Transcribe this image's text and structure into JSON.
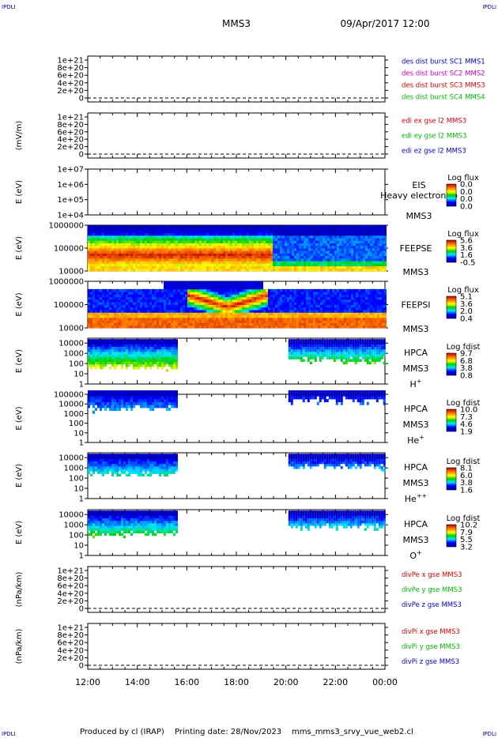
{
  "header": {
    "corner_label": "IPDLI",
    "spacecraft": "MMS3",
    "datetime": "09/Apr/2017 12:00"
  },
  "footer": {
    "produced_by": "Produced by cl (IRAP)",
    "printing_date": "Printing date: 28/Nov/2023",
    "filename": "mms_mms3_srvy_vue_web2.cl"
  },
  "chart_data": {
    "type": "multi-panel time series / spectrogram",
    "x": {
      "ticks": [
        "12:00",
        "14:00",
        "16:00",
        "18:00",
        "20:00",
        "22:00",
        "00:00"
      ],
      "range_hours": [
        12,
        24
      ]
    },
    "panels": [
      {
        "id": "dist",
        "kind": "line",
        "ylabel": "",
        "y_ticks": [
          "1e+21",
          "8e+20",
          "6e+20",
          "4e+20",
          "2e+20",
          "0"
        ],
        "ylim": [
          0,
          1e+21
        ],
        "legend": [
          {
            "text": "des dist burst SC1 MMS1",
            "color": "#0000cc"
          },
          {
            "text": "des dist burst SC2 MMS2",
            "color": "#cc00cc"
          },
          {
            "text": "des dist burst SC3 MMS3",
            "color": "#dd0000"
          },
          {
            "text": "des dist burst SC4 MMS4",
            "color": "#00bb00"
          }
        ]
      },
      {
        "id": "edi",
        "kind": "line",
        "ylabel": "(mV/m)",
        "y_ticks": [
          "1e+21",
          "8e+20",
          "6e+20",
          "4e+20",
          "2e+20",
          "0"
        ],
        "ylim": [
          0,
          1e+21
        ],
        "legend": [
          {
            "text": "edi ex gse l2 MMS3",
            "color": "#dd0000"
          },
          {
            "text": "edi ey gse l2 MMS3",
            "color": "#00bb00"
          },
          {
            "text": "edi ez gse l2 MMS3",
            "color": "#0000cc"
          }
        ]
      },
      {
        "id": "eis",
        "kind": "spectrogram",
        "ylabel": "E (eV)",
        "y_ticks": [
          "1e+07",
          "1e+06",
          "1e+05",
          "1e+04"
        ],
        "ylim": [
          10000,
          10000000
        ],
        "yscale": "log",
        "labels": [
          "EIS",
          "Heavy electron to",
          "MMS3"
        ],
        "cbar_title": "Log flux",
        "cbar_ticks": [
          "0.0",
          "0.0",
          "0.0",
          "0.0"
        ],
        "segments": []
      },
      {
        "id": "feepse",
        "kind": "spectrogram",
        "ylabel": "E (eV)",
        "y_ticks": [
          "1000000",
          "100000",
          "10000"
        ],
        "ylim": [
          10000,
          1000000
        ],
        "yscale": "log",
        "labels": [
          "FEEPSE",
          "MMS3"
        ],
        "cbar_title": "Log flux",
        "cbar_ticks": [
          "5.6",
          "3.6",
          "1.6",
          "-0.5"
        ],
        "segments": [
          [
            12.0,
            24.0
          ]
        ]
      },
      {
        "id": "feepsi",
        "kind": "spectrogram",
        "ylabel": "E (eV)",
        "y_ticks": [
          "1000000",
          "100000",
          "10000"
        ],
        "ylim": [
          10000,
          1000000
        ],
        "yscale": "log",
        "labels": [
          "FEEPSI",
          "MMS3"
        ],
        "cbar_title": "Log flux",
        "cbar_ticks": [
          "5.1",
          "3.6",
          "2.0",
          "0.4"
        ],
        "segments": [
          [
            12.0,
            24.0
          ]
        ]
      },
      {
        "id": "hpca_h",
        "kind": "spectrogram",
        "ylabel": "E (eV)",
        "y_ticks": [
          "10000",
          "1000",
          "100",
          "10",
          "1"
        ],
        "ylim": [
          1,
          30000
        ],
        "yscale": "log",
        "labels": [
          "HPCA",
          "MMS3"
        ],
        "species": "H",
        "species_sup": "+",
        "cbar_title": "Log fdist",
        "cbar_ticks": [
          "9.7",
          "6.8",
          "3.8",
          "0.8"
        ],
        "segments": [
          [
            12.0,
            15.55
          ],
          [
            20.1,
            24.0
          ]
        ]
      },
      {
        "id": "hpca_he",
        "kind": "spectrogram",
        "ylabel": "E (eV)",
        "y_ticks": [
          "100000",
          "10000",
          "1000",
          "100",
          "10",
          "1"
        ],
        "ylim": [
          1,
          100000
        ],
        "yscale": "log",
        "labels": [
          "HPCA",
          "MMS3"
        ],
        "species": "He",
        "species_sup": "+",
        "cbar_title": "Log fdist",
        "cbar_ticks": [
          "10.0",
          "7.3",
          "4.6",
          "1.9"
        ],
        "segments": [
          [
            12.0,
            15.55
          ],
          [
            20.1,
            24.0
          ]
        ]
      },
      {
        "id": "hpca_he2",
        "kind": "spectrogram",
        "ylabel": "E (eV)",
        "y_ticks": [
          "10000",
          "1000",
          "100",
          "10",
          "1"
        ],
        "ylim": [
          1,
          30000
        ],
        "yscale": "log",
        "labels": [
          "HPCA",
          "MMS3"
        ],
        "species": "He",
        "species_sup": "++",
        "cbar_title": "Log fdist",
        "cbar_ticks": [
          "8.1",
          "6.0",
          "3.8",
          "1.6"
        ],
        "segments": [
          [
            12.0,
            15.55
          ],
          [
            20.1,
            24.0
          ]
        ]
      },
      {
        "id": "hpca_o",
        "kind": "spectrogram",
        "ylabel": "E (eV)",
        "y_ticks": [
          "10000",
          "1000",
          "100",
          "10",
          "1"
        ],
        "ylim": [
          1,
          30000
        ],
        "yscale": "log",
        "labels": [
          "HPCA",
          "MMS3"
        ],
        "species": "O",
        "species_sup": "+",
        "cbar_title": "Log fdist",
        "cbar_ticks": [
          "10.2",
          "7.9",
          "5.5",
          "3.2"
        ],
        "segments": [
          [
            12.0,
            15.55
          ],
          [
            20.1,
            24.0
          ]
        ]
      },
      {
        "id": "divpe",
        "kind": "line",
        "ylabel": "(nPa/km)",
        "y_ticks": [
          "1e+21",
          "8e+20",
          "6e+20",
          "4e+20",
          "2e+20",
          "0"
        ],
        "ylim": [
          0,
          1e+21
        ],
        "legend": [
          {
            "text": "divPe x gse MMS3",
            "color": "#dd0000"
          },
          {
            "text": "divPe y gse MMS3",
            "color": "#00bb00"
          },
          {
            "text": "divPe z gse MMS3",
            "color": "#0000cc"
          }
        ]
      },
      {
        "id": "divpi",
        "kind": "line",
        "ylabel": "(nPa/km)",
        "y_ticks": [
          "1e+21",
          "8e+20",
          "6e+20",
          "4e+20",
          "2e+20",
          "0"
        ],
        "ylim": [
          0,
          1e+21
        ],
        "legend": [
          {
            "text": "divPi x gse MMS3",
            "color": "#dd0000"
          },
          {
            "text": "divPi y gse MMS3",
            "color": "#00bb00"
          },
          {
            "text": "divPi z gse MMS3",
            "color": "#0000cc"
          }
        ]
      }
    ]
  }
}
